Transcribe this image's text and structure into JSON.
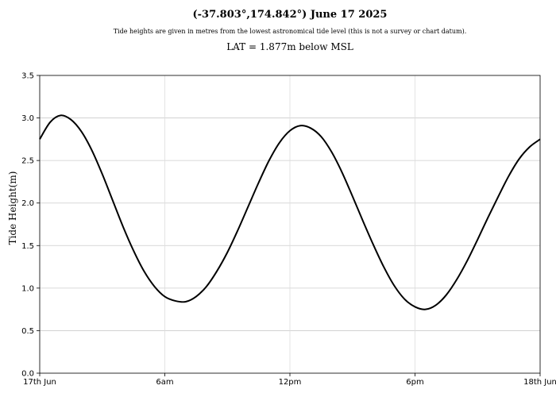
{
  "chart_data": {
    "type": "line",
    "title": "(-37.803°,174.842°) June 17 2025",
    "subtitle": "Tide heights are given in metres from the lowest astronomical tide level (this is not a survey or chart datum).",
    "annotation": "LAT = 1.877m below MSL",
    "xlabel": "",
    "ylabel": "Tide Height(m)",
    "ylim": [
      0,
      3.5
    ],
    "yticks": [
      0.0,
      0.5,
      1.0,
      1.5,
      2.0,
      2.5,
      3.0,
      3.5
    ],
    "ytick_labels": [
      "0.0",
      "0.5",
      "1.0",
      "1.5",
      "2.0",
      "2.5",
      "3.0",
      "3.5"
    ],
    "xlim": [
      0,
      24
    ],
    "xticks": [
      0,
      6,
      12,
      18,
      24
    ],
    "xtick_labels": [
      "17th Jun",
      "6am",
      "12pm",
      "6pm",
      "18th Jun"
    ],
    "grid": true,
    "line_color": "#000000",
    "series": [
      {
        "x": [
          0,
          0.5,
          1,
          1.5,
          2,
          2.5,
          3,
          3.5,
          4,
          4.5,
          5,
          5.5,
          6,
          6.5,
          7,
          7.5,
          8,
          8.5,
          9,
          9.5,
          10,
          10.5,
          11,
          11.5,
          12,
          12.5,
          13,
          13.5,
          14,
          14.5,
          15,
          15.5,
          16,
          16.5,
          17,
          17.5,
          18,
          18.5,
          19,
          19.5,
          20,
          20.5,
          21,
          21.5,
          22,
          22.5,
          23,
          23.5,
          24
        ],
        "y": [
          2.75,
          2.95,
          3.03,
          2.98,
          2.84,
          2.62,
          2.34,
          2.03,
          1.72,
          1.44,
          1.2,
          1.02,
          0.9,
          0.85,
          0.84,
          0.9,
          1.02,
          1.2,
          1.42,
          1.68,
          1.96,
          2.24,
          2.5,
          2.71,
          2.85,
          2.91,
          2.88,
          2.78,
          2.6,
          2.36,
          2.08,
          1.79,
          1.51,
          1.25,
          1.03,
          0.87,
          0.78,
          0.75,
          0.8,
          0.92,
          1.1,
          1.32,
          1.57,
          1.83,
          2.08,
          2.32,
          2.52,
          2.66,
          2.75
        ]
      }
    ]
  }
}
